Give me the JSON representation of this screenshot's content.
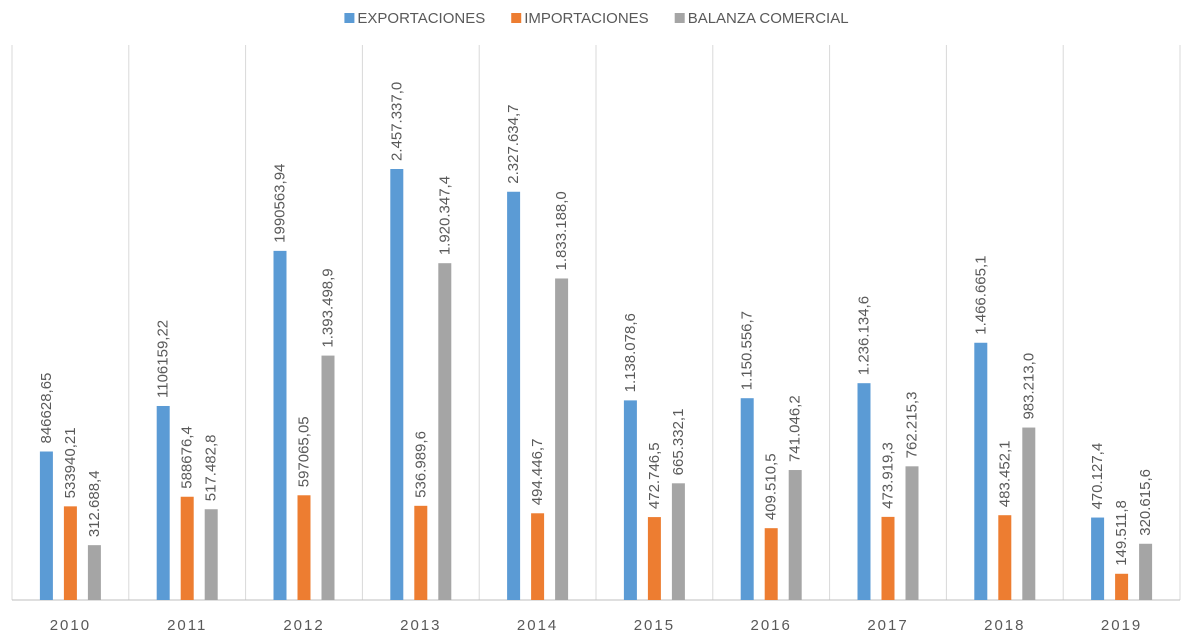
{
  "chart_data": {
    "type": "bar",
    "categories": [
      "2010",
      "2011",
      "2012",
      "2013",
      "2014",
      "2015",
      "2016",
      "2017",
      "2018",
      "2019"
    ],
    "series": [
      {
        "name": "EXPORTACIONES",
        "color": "#5b9bd5",
        "values": [
          846628.65,
          1106159.22,
          1990563.94,
          2457337.0,
          2327634.7,
          1138078.6,
          1150556.7,
          1236134.6,
          1466665.1,
          470127.4
        ],
        "value_labels": [
          "846628,65",
          "1106159,22",
          "1990563,94",
          "2.457.337,0",
          "2.327.634,7",
          "1.138.078,6",
          "1.150.556,7",
          "1.236.134,6",
          "1.466.665,1",
          "470.127,4"
        ]
      },
      {
        "name": "IMPORTACIONES",
        "color": "#ed7d31",
        "values": [
          533940.21,
          588676.4,
          597065.05,
          536989.6,
          494446.7,
          472746.5,
          409510.5,
          473919.3,
          483452.1,
          149511.8
        ],
        "value_labels": [
          "533940,21",
          "588676,4",
          "597065,05",
          "536.989,6",
          "494.446,7",
          "472.746,5",
          "409.510,5",
          "473.919,3",
          "483.452,1",
          "149.511,8"
        ]
      },
      {
        "name": "BALANZA COMERCIAL",
        "color": "#a5a5a5",
        "values": [
          312688.4,
          517482.8,
          1393498.9,
          1920347.4,
          1833188.0,
          665332.1,
          741046.2,
          762215.3,
          983213.0,
          320615.6
        ],
        "value_labels": [
          "312.688,4",
          "517.482,8",
          "1.393.498,9",
          "1.920.347,4",
          "1.833.188,0",
          "665.332,1",
          "741.046,2",
          "762.215,3",
          "983.213,0",
          "320.615,6"
        ]
      }
    ],
    "legend": "top"
  }
}
